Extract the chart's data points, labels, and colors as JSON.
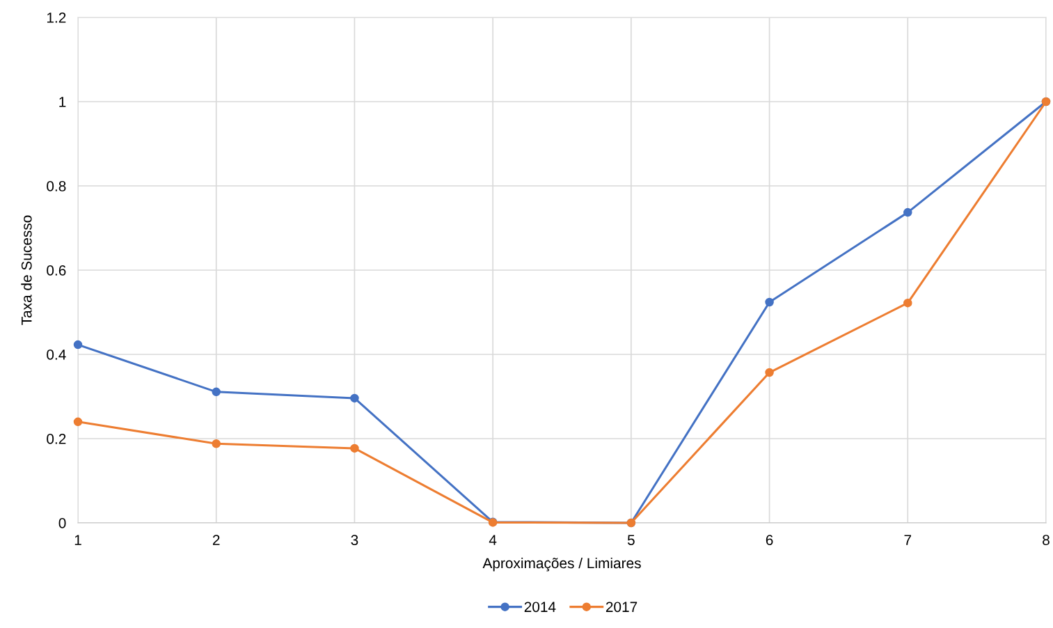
{
  "chart_data": {
    "type": "line",
    "xlabel": "Aproximações / Limiares",
    "ylabel": "Taxa de Sucesso",
    "x": [
      1,
      2,
      3,
      4,
      5,
      6,
      7,
      8
    ],
    "series": [
      {
        "name": "2014",
        "color": "#4472c4",
        "values": [
          0.423,
          0.311,
          0.296,
          0.002,
          0,
          0.524,
          0.737,
          1.0
        ]
      },
      {
        "name": "2017",
        "color": "#ed7d31",
        "values": [
          0.24,
          0.188,
          0.177,
          0.001,
          0,
          0.357,
          0.522,
          1.0
        ]
      }
    ],
    "xlim": [
      1,
      8
    ],
    "xticks": [
      1,
      2,
      3,
      4,
      5,
      6,
      7,
      8
    ],
    "ylim": [
      0,
      1.2
    ],
    "yticks": [
      0,
      0.2,
      0.4,
      0.6,
      0.8,
      1,
      1.2
    ],
    "grid": true,
    "legend": "bottom",
    "marker": "circle",
    "line_style": "solid"
  }
}
